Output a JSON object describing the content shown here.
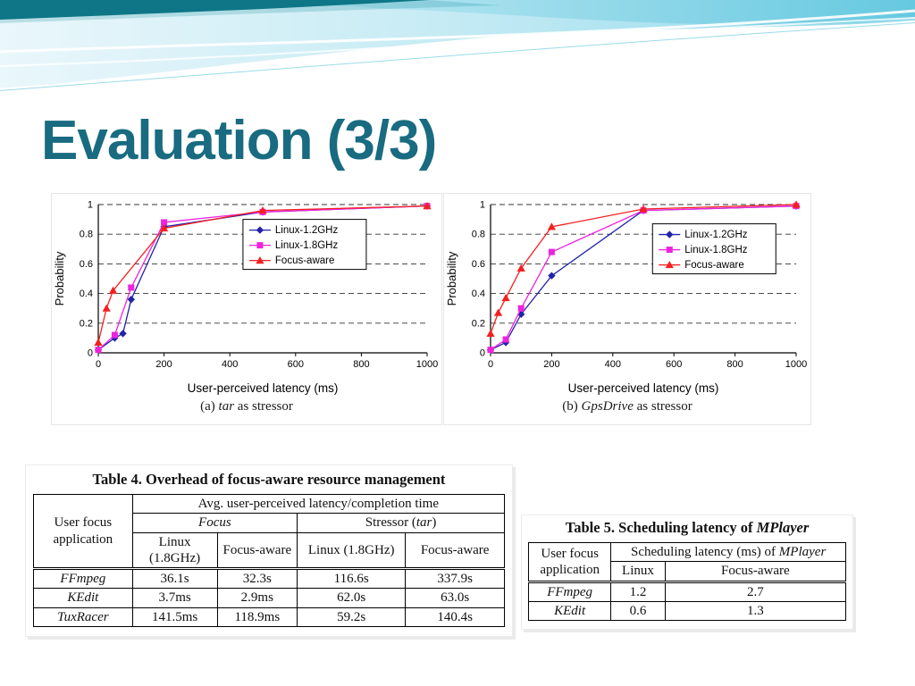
{
  "slide": {
    "title": "Evaluation (3/3)"
  },
  "colors": {
    "title": "#186b80",
    "header_teal_dark": "#0e7181",
    "header_cyan": "#8ed9ea",
    "series_blue": "#2222aa",
    "series_magenta": "#ee22dd",
    "series_red": "#f42020"
  },
  "chart_data": [
    {
      "type": "line",
      "caption": "(a) tar as stressor",
      "caption_prefix": "(a) ",
      "caption_italic": "tar",
      "caption_suffix": " as stressor",
      "title": "",
      "xlabel": "User-perceived latency (ms)",
      "ylabel": "Probability",
      "xlim": [
        0,
        1000
      ],
      "ylim": [
        0,
        1
      ],
      "xticks": [
        0,
        200,
        400,
        600,
        800,
        1000
      ],
      "yticks": [
        0,
        0.2,
        0.4,
        0.6,
        0.8,
        1
      ],
      "grid": "dashed-horizontal",
      "legend_position": "inside-upper-right",
      "series": [
        {
          "name": "Linux-1.2GHz",
          "color": "#2222aa",
          "marker": "diamond",
          "points": [
            [
              0,
              0.02
            ],
            [
              50,
              0.1
            ],
            [
              75,
              0.13
            ],
            [
              100,
              0.36
            ],
            [
              200,
              0.85
            ],
            [
              500,
              0.95
            ],
            [
              1000,
              0.99
            ]
          ]
        },
        {
          "name": "Linux-1.8GHz",
          "color": "#ee22dd",
          "marker": "square",
          "points": [
            [
              0,
              0.02
            ],
            [
              50,
              0.12
            ],
            [
              100,
              0.44
            ],
            [
              200,
              0.88
            ],
            [
              500,
              0.95
            ],
            [
              1000,
              0.99
            ]
          ]
        },
        {
          "name": "Focus-aware",
          "color": "#f42020",
          "marker": "triangle",
          "points": [
            [
              0,
              0.07
            ],
            [
              25,
              0.3
            ],
            [
              45,
              0.42
            ],
            [
              200,
              0.84
            ],
            [
              500,
              0.96
            ],
            [
              1000,
              0.99
            ]
          ]
        }
      ]
    },
    {
      "type": "line",
      "caption": "(b) GpsDrive as stressor",
      "caption_prefix": "(b) ",
      "caption_italic": "GpsDrive",
      "caption_suffix": " as stressor",
      "title": "",
      "xlabel": "User-perceived latency (ms)",
      "ylabel": "Probability",
      "xlim": [
        0,
        1000
      ],
      "ylim": [
        0,
        1
      ],
      "xticks": [
        0,
        200,
        400,
        600,
        800,
        1000
      ],
      "yticks": [
        0,
        0.2,
        0.4,
        0.6,
        0.8,
        1
      ],
      "grid": "dashed-horizontal",
      "legend_position": "inside-upper-right",
      "series": [
        {
          "name": "Linux-1.2GHz",
          "color": "#2222aa",
          "marker": "diamond",
          "points": [
            [
              0,
              0.02
            ],
            [
              50,
              0.07
            ],
            [
              100,
              0.26
            ],
            [
              200,
              0.52
            ],
            [
              500,
              0.96
            ],
            [
              1000,
              0.99
            ]
          ]
        },
        {
          "name": "Linux-1.8GHz",
          "color": "#ee22dd",
          "marker": "square",
          "points": [
            [
              0,
              0.02
            ],
            [
              50,
              0.09
            ],
            [
              100,
              0.3
            ],
            [
              200,
              0.68
            ],
            [
              500,
              0.96
            ],
            [
              1000,
              0.99
            ]
          ]
        },
        {
          "name": "Focus-aware",
          "color": "#f42020",
          "marker": "triangle",
          "points": [
            [
              0,
              0.13
            ],
            [
              25,
              0.27
            ],
            [
              50,
              0.37
            ],
            [
              100,
              0.57
            ],
            [
              200,
              0.85
            ],
            [
              500,
              0.97
            ],
            [
              1000,
              1.0
            ]
          ]
        }
      ]
    }
  ],
  "table4": {
    "caption": "Table 4. Overhead of focus-aware resource management",
    "header": {
      "col1": "User focus application",
      "top": "Avg. user-perceived latency/completion time",
      "group_focus": "Focus",
      "group_stressor_prefix": "Stressor (",
      "group_stressor_italic": "tar",
      "group_stressor_suffix": ")",
      "sub": [
        "Linux (1.8GHz)",
        "Focus-aware",
        "Linux (1.8GHz)",
        "Focus-aware"
      ]
    },
    "rows": [
      {
        "app": "FFmpeg",
        "cells": [
          "36.1s",
          "32.3s",
          "116.6s",
          "337.9s"
        ]
      },
      {
        "app": "KEdit",
        "cells": [
          "3.7ms",
          "2.9ms",
          "62.0s",
          "63.0s"
        ]
      },
      {
        "app": "TuxRacer",
        "cells": [
          "141.5ms",
          "118.9ms",
          "59.2s",
          "140.4s"
        ]
      }
    ]
  },
  "table5": {
    "caption_prefix": "Table 5. Scheduling latency of ",
    "caption_italic": "MPlayer",
    "header": {
      "col1": "User focus application",
      "top_prefix": "Scheduling latency (ms) of ",
      "top_italic": "MPlayer",
      "sub": [
        "Linux",
        "Focus-aware"
      ]
    },
    "rows": [
      {
        "app": "FFmpeg",
        "cells": [
          "1.2",
          "2.7"
        ]
      },
      {
        "app": "KEdit",
        "cells": [
          "0.6",
          "1.3"
        ]
      }
    ]
  }
}
